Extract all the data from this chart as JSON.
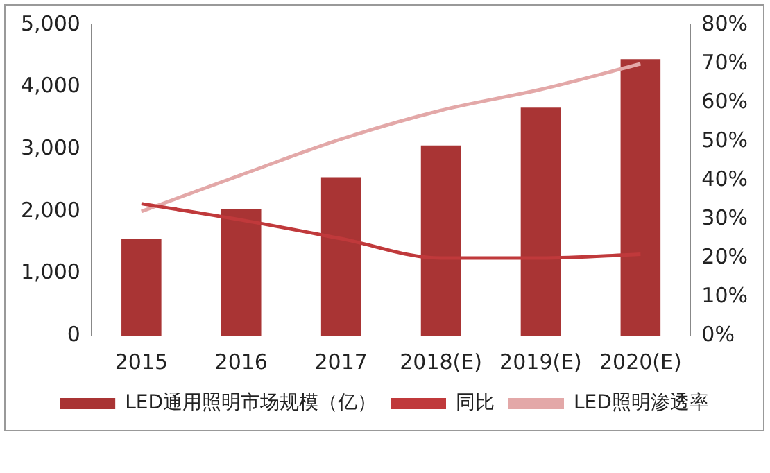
{
  "chart_data": {
    "type": "bar",
    "categories": [
      "2015",
      "2016",
      "2017",
      "2018(E)",
      "2019(E)",
      "2020(E)"
    ],
    "series": [
      {
        "name": "LED通用照明市场规模（亿）",
        "color": "#a93434",
        "values": [
          1560,
          2040,
          2550,
          3060,
          3670,
          4450
        ]
      },
      {
        "name": "同比",
        "type": "line",
        "axis": "y2",
        "color": "#c0393b",
        "values": [
          34,
          29.8,
          25,
          20,
          20,
          21
        ]
      },
      {
        "name": "LED照明渗透率",
        "type": "line",
        "axis": "y2",
        "color": "#e3a8a8",
        "values": [
          32,
          41.4,
          50.6,
          58,
          63.4,
          70
        ]
      }
    ],
    "ylim": [
      0,
      5000
    ],
    "yticks": [
      0,
      {
        "value": 1000,
        "label": "1,000"
      },
      {
        "value": 2000,
        "label": "2,000"
      },
      {
        "value": 3000,
        "label": "3,000"
      },
      {
        "value": 4000,
        "label": "4,000"
      },
      {
        "value": 5000,
        "label": "5,000"
      }
    ],
    "y2lim": [
      0,
      80
    ],
    "y2ticks": [
      {
        "value": 0,
        "label": "0%"
      },
      {
        "value": 10,
        "label": "10%"
      },
      {
        "value": 20,
        "label": "20%"
      },
      {
        "value": 30,
        "label": "30%"
      },
      {
        "value": 40,
        "label": "40%"
      },
      {
        "value": 50,
        "label": "50%"
      },
      {
        "value": 60,
        "label": "60%"
      },
      {
        "value": 70,
        "label": "70%"
      },
      {
        "value": 80,
        "label": "80%"
      }
    ],
    "grid": false,
    "legend": "bottom",
    "marker": "none"
  }
}
